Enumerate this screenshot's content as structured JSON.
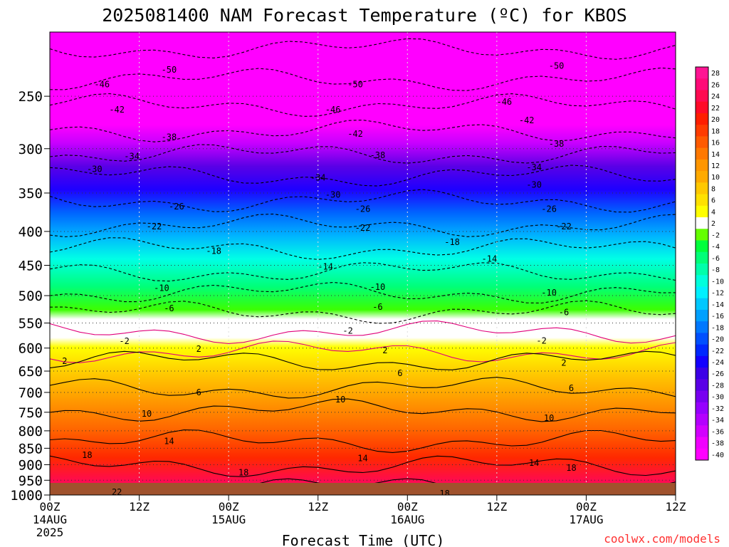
{
  "chart_data": {
    "type": "heatmap",
    "title": "2025081400 NAM Forecast Temperature (ºC) for KBOS",
    "xlabel": "Forecast Time (UTC)",
    "ylabel": "",
    "credit": "coolwx.com/models",
    "y_scale": "log-pressure",
    "y_range": [
      200,
      1000
    ],
    "y_ticks": [
      250,
      300,
      350,
      400,
      450,
      500,
      550,
      600,
      650,
      700,
      750,
      800,
      850,
      900,
      950,
      1000
    ],
    "x_range_hours": [
      0,
      84
    ],
    "x_ticks": [
      {
        "hour": 0,
        "label": "00Z",
        "sub": "14AUG",
        "sub2": "2025"
      },
      {
        "hour": 12,
        "label": "12Z",
        "sub": "",
        "sub2": ""
      },
      {
        "hour": 24,
        "label": "00Z",
        "sub": "15AUG",
        "sub2": ""
      },
      {
        "hour": 36,
        "label": "12Z",
        "sub": "",
        "sub2": ""
      },
      {
        "hour": 48,
        "label": "00Z",
        "sub": "16AUG",
        "sub2": ""
      },
      {
        "hour": 60,
        "label": "12Z",
        "sub": "",
        "sub2": ""
      },
      {
        "hour": 72,
        "label": "00Z",
        "sub": "17AUG",
        "sub2": ""
      },
      {
        "hour": 84,
        "label": "12Z",
        "sub": "",
        "sub2": ""
      }
    ],
    "colorbar": {
      "labels": [
        "28",
        "26",
        "24",
        "22",
        "20",
        "18",
        "16",
        "14",
        "12",
        "10",
        "8",
        "6",
        "4",
        "2",
        "-2",
        "-4",
        "-6",
        "-8",
        "-10",
        "-12",
        "-14",
        "-16",
        "-18",
        "-20",
        "-22",
        "-24",
        "-26",
        "-28",
        "-30",
        "-32",
        "-34",
        "-36",
        "-38",
        "-40"
      ],
      "colors": [
        "#ff1493",
        "#ff0a78",
        "#ff0a50",
        "#ff0a28",
        "#ff1e00",
        "#ff3c00",
        "#ff5a00",
        "#ff7800",
        "#ff9600",
        "#ffaa00",
        "#ffc800",
        "#ffe100",
        "#ffff00",
        "#ffffff",
        "#64ff00",
        "#00ff3c",
        "#00ff78",
        "#00ffaa",
        "#00ffdc",
        "#00f0ff",
        "#00c8ff",
        "#00a0ff",
        "#0078ff",
        "#0050ff",
        "#0028ff",
        "#1400ff",
        "#3c00e6",
        "#5a00e6",
        "#7800f0",
        "#9600ff",
        "#b400ff",
        "#d200ff",
        "#f000ff",
        "#ff00ff"
      ]
    },
    "contour_labels": [
      {
        "text": "-50",
        "hour": 16,
        "p": 228
      },
      {
        "text": "-46",
        "hour": 7,
        "p": 240
      },
      {
        "text": "-42",
        "hour": 9,
        "p": 262
      },
      {
        "text": "-38",
        "hour": 16,
        "p": 288
      },
      {
        "text": "-34",
        "hour": 11,
        "p": 308
      },
      {
        "text": "-30",
        "hour": 6,
        "p": 322
      },
      {
        "text": "-26",
        "hour": 17,
        "p": 367
      },
      {
        "text": "-22",
        "hour": 14,
        "p": 393
      },
      {
        "text": "-18",
        "hour": 22,
        "p": 428
      },
      {
        "text": "-14",
        "hour": 37,
        "p": 452
      },
      {
        "text": "-10",
        "hour": 15,
        "p": 487
      },
      {
        "text": "-6",
        "hour": 16,
        "p": 523
      },
      {
        "text": "-2",
        "hour": 10,
        "p": 586
      },
      {
        "text": "2",
        "hour": 2,
        "p": 628
      },
      {
        "text": "2",
        "hour": 20,
        "p": 602
      },
      {
        "text": "6",
        "hour": 20,
        "p": 700
      },
      {
        "text": "10",
        "hour": 13,
        "p": 754
      },
      {
        "text": "14",
        "hour": 16,
        "p": 830
      },
      {
        "text": "18",
        "hour": 5,
        "p": 870
      },
      {
        "text": "18",
        "hour": 26,
        "p": 925
      },
      {
        "text": "22",
        "hour": 9,
        "p": 990
      },
      {
        "text": "-50",
        "hour": 41,
        "p": 240
      },
      {
        "text": "-46",
        "hour": 38,
        "p": 262
      },
      {
        "text": "-42",
        "hour": 41,
        "p": 285
      },
      {
        "text": "-38",
        "hour": 44,
        "p": 307
      },
      {
        "text": "-34",
        "hour": 36,
        "p": 332
      },
      {
        "text": "-30",
        "hour": 38,
        "p": 352
      },
      {
        "text": "-26",
        "hour": 42,
        "p": 370
      },
      {
        "text": "-22",
        "hour": 42,
        "p": 395
      },
      {
        "text": "-18",
        "hour": 54,
        "p": 415
      },
      {
        "text": "-10",
        "hour": 44,
        "p": 485
      },
      {
        "text": "-6",
        "hour": 44,
        "p": 520
      },
      {
        "text": "-2",
        "hour": 40,
        "p": 565
      },
      {
        "text": "2",
        "hour": 45,
        "p": 605
      },
      {
        "text": "6",
        "hour": 47,
        "p": 655
      },
      {
        "text": "10",
        "hour": 39,
        "p": 718
      },
      {
        "text": "14",
        "hour": 42,
        "p": 880
      },
      {
        "text": "18",
        "hour": 53,
        "p": 995
      },
      {
        "text": "-50",
        "hour": 68,
        "p": 225
      },
      {
        "text": "-46",
        "hour": 61,
        "p": 255
      },
      {
        "text": "-42",
        "hour": 64,
        "p": 272
      },
      {
        "text": "-38",
        "hour": 68,
        "p": 295
      },
      {
        "text": "-34",
        "hour": 65,
        "p": 320
      },
      {
        "text": "-30",
        "hour": 65,
        "p": 340
      },
      {
        "text": "-26",
        "hour": 67,
        "p": 370
      },
      {
        "text": "-22",
        "hour": 69,
        "p": 393
      },
      {
        "text": "-14",
        "hour": 59,
        "p": 440
      },
      {
        "text": "-10",
        "hour": 67,
        "p": 495
      },
      {
        "text": "-6",
        "hour": 69,
        "p": 530
      },
      {
        "text": "-2",
        "hour": 66,
        "p": 585
      },
      {
        "text": "2",
        "hour": 69,
        "p": 632
      },
      {
        "text": "6",
        "hour": 70,
        "p": 690
      },
      {
        "text": "10",
        "hour": 67,
        "p": 765
      },
      {
        "text": "14",
        "hour": 65,
        "p": 895
      },
      {
        "text": "18",
        "hour": 70,
        "p": 910
      }
    ]
  }
}
